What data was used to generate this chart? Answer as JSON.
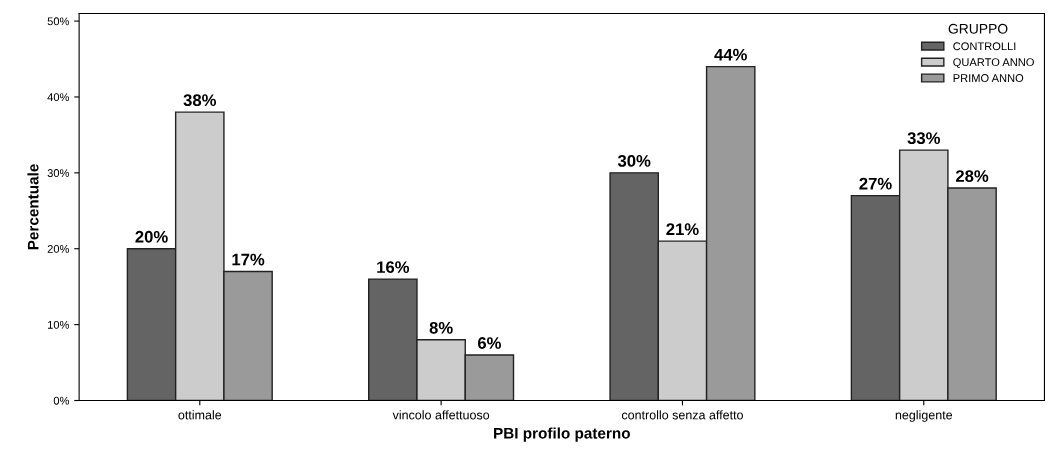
{
  "chart_data": {
    "type": "bar",
    "xlabel": "PBI profilo paterno",
    "ylabel": "Percentuale",
    "legend_title": "GRUPPO",
    "legend": "top right",
    "grid": false,
    "categories": [
      "ottimale",
      "vincolo affettuoso",
      "controllo senza affetto",
      "negligente"
    ],
    "ylim": [
      0,
      51
    ],
    "yticks": [
      {
        "value": 0,
        "label": "0%"
      },
      {
        "value": 10,
        "label": "10%"
      },
      {
        "value": 20,
        "label": "20%"
      },
      {
        "value": 30,
        "label": "30%"
      },
      {
        "value": 40,
        "label": "40%"
      },
      {
        "value": 50,
        "label": "50%"
      }
    ],
    "series": [
      {
        "name": "CONTROLLI",
        "color": "#646464",
        "values": [
          20,
          16,
          30,
          27
        ],
        "value_labels": [
          "20%",
          "16%",
          "30%",
          "27%"
        ]
      },
      {
        "name": "QUARTO ANNO",
        "color": "#cccccc",
        "values": [
          38,
          8,
          21,
          33
        ],
        "value_labels": [
          "38%",
          "8%",
          "21%",
          "33%"
        ]
      },
      {
        "name": "PRIMO ANNO",
        "color": "#9a9a9a",
        "values": [
          17,
          6,
          44,
          28
        ],
        "value_labels": [
          "17%",
          "6%",
          "44%",
          "28%"
        ]
      }
    ]
  }
}
